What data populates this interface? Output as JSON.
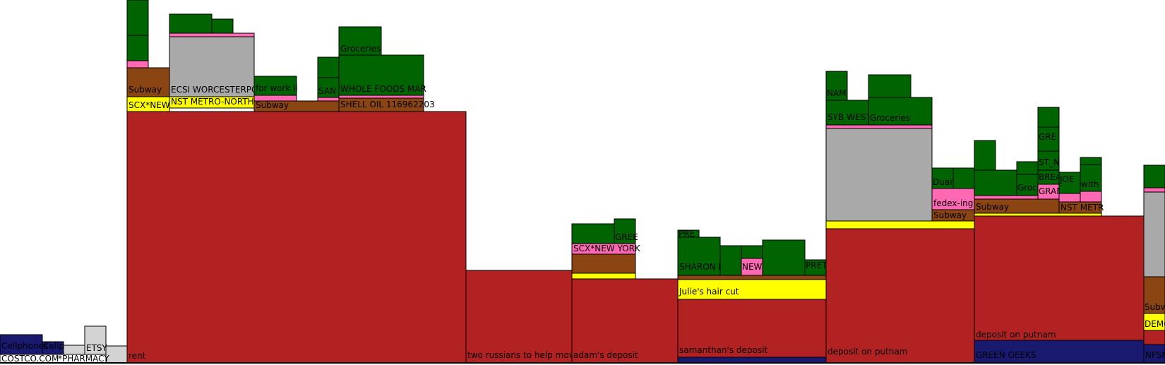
{
  "chart_data": {
    "type": "stacked-block (treemap-style spending chart)",
    "title": "",
    "colors": {
      "rent": "#b22222",
      "shopping": "#d3d3d3",
      "electronics": "#191970",
      "haircut": "#ffff00",
      "transport": "#ffff00",
      "subway": "#8b4513",
      "misc_pink": "#ff69b4",
      "utilities": "#a9a9a9",
      "food": "#006400",
      "blank": "#ffffff"
    },
    "labels": {
      "cellphones": "Cellphones",
      "cellp": "Cellp",
      "costco": "COSTCO.COM",
      "pharmacy": "*PHARMACY",
      "etsy": "ETSY",
      "rent": "rent",
      "subway": "Subway",
      "scx_new": "SCX*NEW",
      "ecsi": "ECSI WORCESTERPOL",
      "nst_metro": "NST METRO-NORTH",
      "for_work": "for work li",
      "san": "SAN",
      "groceries": "Groceries",
      "whole_foods": "WHOLE FOODS MAR",
      "shell": "SHELL OIL 116962203",
      "two_russians": "two russians to help move",
      "adams_deposit": "adam's deposit",
      "gree": "GREE",
      "scx_new_york": "SCX*NEW YORK",
      "pre": "PRE",
      "sharon": "SHARON F",
      "new": "NEW",
      "pret": "PRET",
      "julies_haircut": "Julie's hair cut",
      "samanthas_deposit": "samanthan's deposit",
      "nam": "NAM",
      "syb_west": "SYB WEST",
      "deposit_putnam": "deposit on putnam",
      "duan": "Duan",
      "fedex": "fedex-ing a",
      "green_geeks": "GREEN GEEKS",
      "groc": "Groc",
      "gre": "GRE",
      "st": "ST_N",
      "brea": "BREA",
      "joe": "JOE",
      "gran": "GRAN",
      "with": "with",
      "nst_metr": "NST METR",
      "subw": "Subw",
      "demo": "DEMO",
      "nfsn": "NFSN"
    }
  }
}
